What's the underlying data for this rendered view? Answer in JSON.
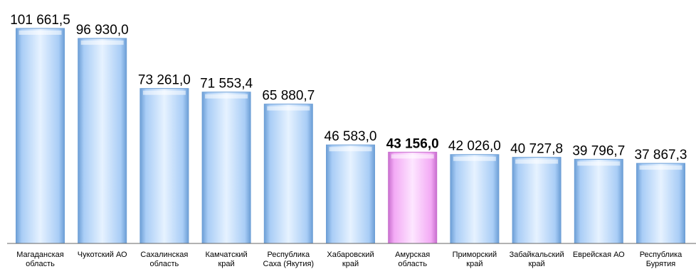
{
  "chart_data": {
    "type": "bar",
    "title": "",
    "xlabel": "",
    "ylabel": "",
    "ylim": [
      0,
      101661.5
    ],
    "grid": false,
    "legend": "none",
    "categories": [
      [
        "Магаданская",
        "область"
      ],
      [
        "Чукотский АО"
      ],
      [
        "Сахалинская",
        "область"
      ],
      [
        "Камчатский",
        "край"
      ],
      [
        "Республика",
        "Саха (Якутия)"
      ],
      [
        "Хабаровский",
        "край"
      ],
      [
        "Амурская",
        "область"
      ],
      [
        "Приморский",
        "край"
      ],
      [
        "Забайкальский",
        "край"
      ],
      [
        "Еврейская АО"
      ],
      [
        "Республика",
        "Бурятия"
      ]
    ],
    "values": [
      101661.5,
      96930.0,
      73261.0,
      71553.4,
      65880.7,
      46583.0,
      43156.0,
      42026.0,
      40727.8,
      39796.7,
      37867.3
    ],
    "labels": [
      "101 661,5",
      "96 930,0",
      "73 261,0",
      "71 553,4",
      "65 880,7",
      "46 583,0",
      "43 156,0",
      "42 026,0",
      "40 727,8",
      "39 796,7",
      "37 867,3"
    ],
    "highlight_index": 6,
    "colors": {
      "bar": "#a9cdf6",
      "bar_dark": "#6d9fd6",
      "bar_light": "#e6f2ff",
      "highlight": "#f3aaf5",
      "highlight_dark": "#c96fcf",
      "highlight_light": "#fde6ff",
      "axis": "#666666"
    }
  }
}
